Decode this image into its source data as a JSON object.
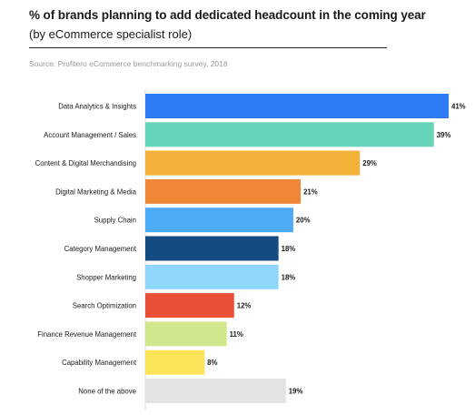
{
  "header": {
    "title": "% of brands planning to add dedicated headcount in the coming year",
    "subtitle": "(by eCommerce specialist role)",
    "source": "Source: Profitero eCommerce benchmarking survey, 2018"
  },
  "chart_data": {
    "type": "bar",
    "orientation": "horizontal",
    "title": "% of brands planning to add dedicated headcount in the coming year",
    "subtitle": "(by eCommerce specialist role)",
    "xlabel": "",
    "ylabel": "",
    "xlim": [
      0,
      41
    ],
    "grid": false,
    "legend": "none",
    "value_suffix": "%",
    "categories": [
      "Data Analytics & Insights",
      "Account Management / Sales",
      "Content & Digital Merchandising",
      "Digital Marketing & Media",
      "Supply Chain",
      "Category Management",
      "Shopper Marketing",
      "Search Optimization",
      "Finance Revenue Management",
      "Capability Management",
      "None of the above"
    ],
    "values": [
      41,
      39,
      29,
      21,
      20,
      18,
      18,
      12,
      11,
      8,
      19
    ],
    "colors": [
      "#2f7bf5",
      "#66d4b8",
      "#f4b13a",
      "#f08737",
      "#4daaf6",
      "#134a82",
      "#8fd6fb",
      "#e94f35",
      "#d1e78e",
      "#fde357",
      "#e3e3e3"
    ]
  }
}
